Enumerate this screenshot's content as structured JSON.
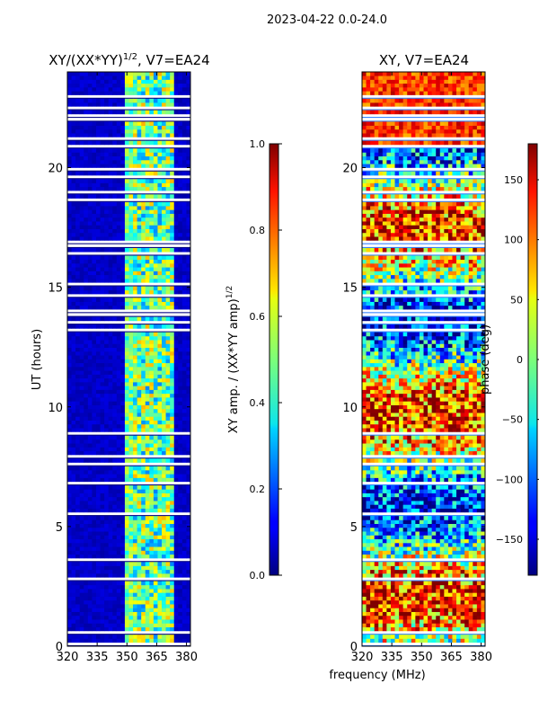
{
  "suptitle": "2023-04-22 0.0-24.0",
  "shared_xlabel": "frequency (MHz)",
  "chart_data": [
    {
      "type": "heatmap",
      "title": "XY/(XX*YY)",
      "title_exponent": "1/2",
      "title_suffix": ", V7=EA24",
      "xlabel": "",
      "ylabel": "UT (hours)",
      "xlim": [
        320,
        382
      ],
      "ylim": [
        0,
        24
      ],
      "xticks": [
        320,
        335,
        350,
        365,
        380
      ],
      "yticks": [
        0,
        5,
        10,
        15,
        20
      ],
      "colorbar": {
        "label": "XY amp. / (XX*YY amp)",
        "label_exponent": "1/2",
        "range": [
          0.0,
          1.0
        ],
        "ticks": [
          "0.0",
          "0.2",
          "0.4",
          "0.6",
          "0.8",
          "1.0"
        ]
      }
    },
    {
      "type": "heatmap",
      "title": "XY, V7=EA24",
      "xlabel": "frequency (MHz)",
      "ylabel": "",
      "xlim": [
        320,
        382
      ],
      "ylim": [
        0,
        24
      ],
      "xticks": [
        320,
        335,
        350,
        365,
        380
      ],
      "yticks": [
        0,
        5,
        10,
        15,
        20
      ],
      "colorbar": {
        "label": "phase (deg)",
        "range": [
          -180,
          180
        ],
        "ticks": [
          "−150",
          "−100",
          "−50",
          "0",
          "50",
          "100",
          "150"
        ]
      }
    }
  ]
}
